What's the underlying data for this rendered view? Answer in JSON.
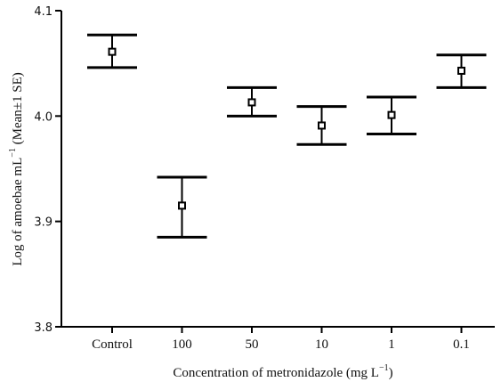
{
  "chart_data": {
    "type": "scatter",
    "title": "",
    "xlabel": "Concentration of metronidazole (mg L",
    "xlabel_sup": "−1",
    "xlabel_end": ")",
    "ylabel": "Log of amoebae mL",
    "ylabel_sup": "−1",
    "ylabel_end": " (Mean±1 SE)",
    "categories": [
      "Control",
      "100",
      "50",
      "10",
      "1",
      "0.1"
    ],
    "values": [
      4.061,
      3.915,
      4.013,
      3.991,
      4.001,
      4.043
    ],
    "error_low": [
      4.046,
      3.885,
      4.0,
      3.973,
      3.983,
      4.027
    ],
    "error_high": [
      4.077,
      3.942,
      4.027,
      4.009,
      4.018,
      4.058
    ],
    "ylim": [
      3.8,
      4.1
    ],
    "yticks": [
      3.8,
      3.9,
      4.0,
      4.1
    ],
    "ytick_labels": [
      "3.8",
      "3.9",
      "4.0",
      "4.1"
    ],
    "grid": false,
    "legend": "none",
    "marker": "open-square",
    "color": "#000000"
  }
}
